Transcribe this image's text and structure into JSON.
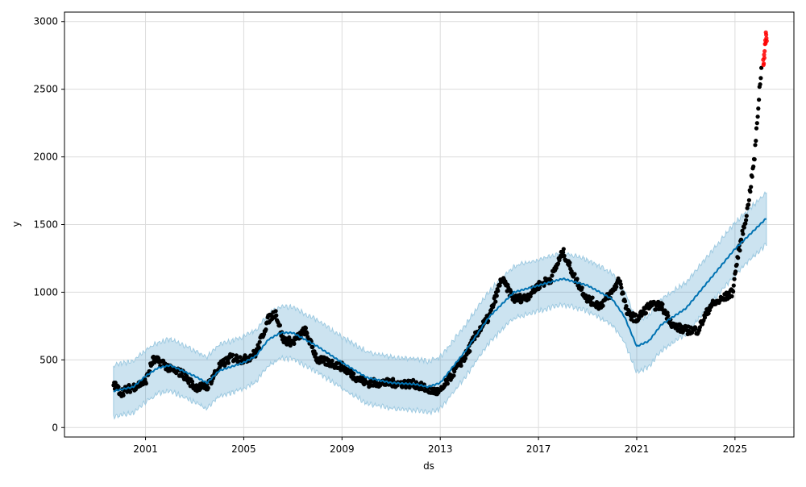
{
  "chart_data": {
    "type": "line",
    "title": "",
    "xlabel": "ds",
    "ylabel": "y",
    "xlim": [
      1997.7,
      2027.4
    ],
    "ylim": [
      -70,
      3070
    ],
    "grid": true,
    "x_ticks": [
      "2001",
      "2005",
      "2009",
      "2013",
      "2017",
      "2021",
      "2025"
    ],
    "x_tick_values": [
      2001,
      2005,
      2009,
      2013,
      2017,
      2021,
      2025
    ],
    "y_ticks": [
      "0",
      "500",
      "1000",
      "1500",
      "2000",
      "2500",
      "3000"
    ],
    "y_tick_values": [
      0,
      500,
      1000,
      1500,
      2000,
      2500,
      3000
    ],
    "colors": {
      "observed": "#000000",
      "holdout": "#ff0000",
      "forecast": "#0072B2",
      "interval": "#0072B2"
    },
    "series": [
      {
        "name": "yhat",
        "x": [
          1999.7,
          2000.5,
          2001,
          2001.5,
          2002,
          2003,
          2003.5,
          2004,
          2005,
          2005.5,
          2006,
          2006.5,
          2007,
          2008,
          2009,
          2010,
          2011,
          2012,
          2012.5,
          2013,
          2014,
          2015,
          2016,
          2017,
          2018,
          2019,
          2020,
          2020.5,
          2021,
          2021.5,
          2022,
          2023,
          2024,
          2025,
          2026.3
        ],
        "values": [
          270,
          300,
          380,
          440,
          460,
          380,
          330,
          420,
          480,
          530,
          650,
          700,
          700,
          600,
          480,
          370,
          330,
          320,
          300,
          330,
          560,
          820,
          1000,
          1050,
          1100,
          1050,
          950,
          820,
          600,
          640,
          760,
          880,
          1100,
          1320,
          1550
        ]
      },
      {
        "name": "interval_halfwidth",
        "value": 190
      },
      {
        "name": "observed",
        "x": [
          1999.7,
          2000,
          2000.5,
          2001,
          2001.3,
          2001.7,
          2002,
          2002.5,
          2003,
          2003.5,
          2004,
          2004.5,
          2005,
          2005.5,
          2006,
          2006.3,
          2006.6,
          2007,
          2007.5,
          2008,
          2008.5,
          2009,
          2009.5,
          2010,
          2011,
          2012,
          2012.5,
          2013,
          2013.5,
          2014,
          2014.5,
          2015,
          2015.5,
          2016,
          2016.5,
          2017,
          2017.5,
          2018,
          2018.5,
          2019,
          2019.5,
          2020,
          2020.3,
          2020.6,
          2021,
          2021.5,
          2022,
          2022.5,
          2023,
          2023.5,
          2024,
          2024.5,
          2024.9,
          2025.1,
          2025.5,
          2025.8,
          2026,
          2026.1
        ],
        "values": [
          320,
          260,
          300,
          340,
          500,
          480,
          430,
          400,
          300,
          300,
          450,
          520,
          500,
          550,
          800,
          850,
          650,
          630,
          720,
          500,
          480,
          450,
          380,
          330,
          330,
          320,
          280,
          260,
          400,
          520,
          700,
          820,
          1100,
          950,
          960,
          1050,
          1100,
          1300,
          1100,
          950,
          900,
          1000,
          1100,
          850,
          800,
          900,
          900,
          750,
          720,
          720,
          900,
          950,
          1000,
          1250,
          1600,
          2000,
          2500,
          2700
        ]
      },
      {
        "name": "holdout",
        "x": [
          2026.15,
          2026.2,
          2026.25,
          2026.3
        ],
        "values": [
          2700,
          2780,
          2850,
          2920
        ]
      }
    ]
  }
}
